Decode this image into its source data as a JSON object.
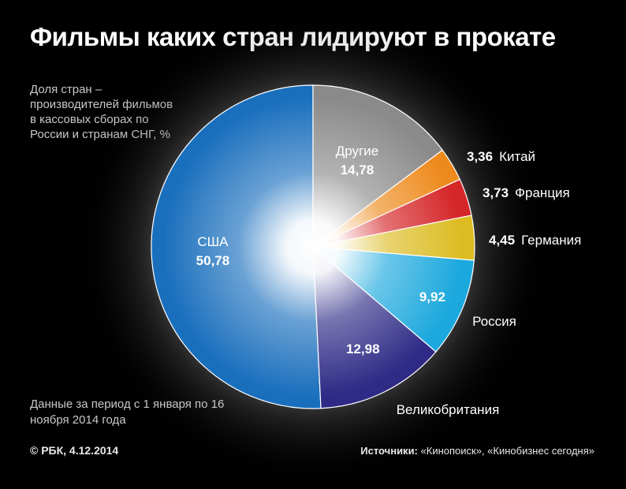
{
  "title": "Фильмы каких стран лидируют в прокате",
  "subtitle": "Доля стран – производителей фильмов в кассовых сборах по России и странам СНГ, %",
  "period": "Данные за период с 1 января по 16 ноября 2014 года",
  "copyright": "© РБК, 4.12.2014",
  "sources_label": "Источники:",
  "sources_text": "«Кинопоиск», «Кинобизнес сегодня»",
  "chart_data": {
    "type": "pie",
    "categories": [
      "США",
      "Великобритания",
      "Россия",
      "Германия",
      "Франция",
      "Китай",
      "Другие"
    ],
    "values": [
      50.78,
      12.98,
      9.92,
      4.45,
      3.73,
      3.36,
      14.78
    ],
    "value_labels": [
      "50,78",
      "12,98",
      "9,92",
      "4,45",
      "3,73",
      "3,36",
      "14,78"
    ],
    "colors": [
      "#1a6fbd",
      "#2e2a86",
      "#1ba8dd",
      "#dcbc22",
      "#d52628",
      "#ee8a1c",
      "#8a8a8a"
    ],
    "unit": "%"
  }
}
